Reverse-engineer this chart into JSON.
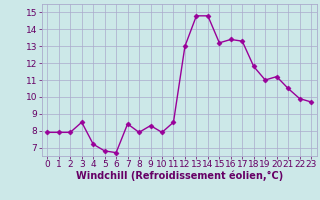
{
  "x": [
    0,
    1,
    2,
    3,
    4,
    5,
    6,
    7,
    8,
    9,
    10,
    11,
    12,
    13,
    14,
    15,
    16,
    17,
    18,
    19,
    20,
    21,
    22,
    23
  ],
  "y": [
    7.9,
    7.9,
    7.9,
    8.5,
    7.2,
    6.8,
    6.7,
    8.4,
    7.9,
    8.3,
    7.9,
    8.5,
    13.0,
    14.8,
    14.8,
    13.2,
    13.4,
    13.3,
    11.8,
    11.0,
    11.2,
    10.5,
    9.9,
    9.7
  ],
  "line_color": "#990099",
  "marker": "D",
  "marker_size": 2.5,
  "bg_color": "#cce8e8",
  "grid_color": "#aaaacc",
  "xlabel": "Windchill (Refroidissement éolien,°C)",
  "xlabel_fontsize": 7,
  "ylim": [
    6.5,
    15.5
  ],
  "xlim": [
    -0.5,
    23.5
  ],
  "yticks": [
    7,
    8,
    9,
    10,
    11,
    12,
    13,
    14,
    15
  ],
  "xticks": [
    0,
    1,
    2,
    3,
    4,
    5,
    6,
    7,
    8,
    9,
    10,
    11,
    12,
    13,
    14,
    15,
    16,
    17,
    18,
    19,
    20,
    21,
    22,
    23
  ],
  "tick_fontsize": 6.5,
  "line_width": 1.0,
  "tick_color": "#660066",
  "label_color": "#660066"
}
